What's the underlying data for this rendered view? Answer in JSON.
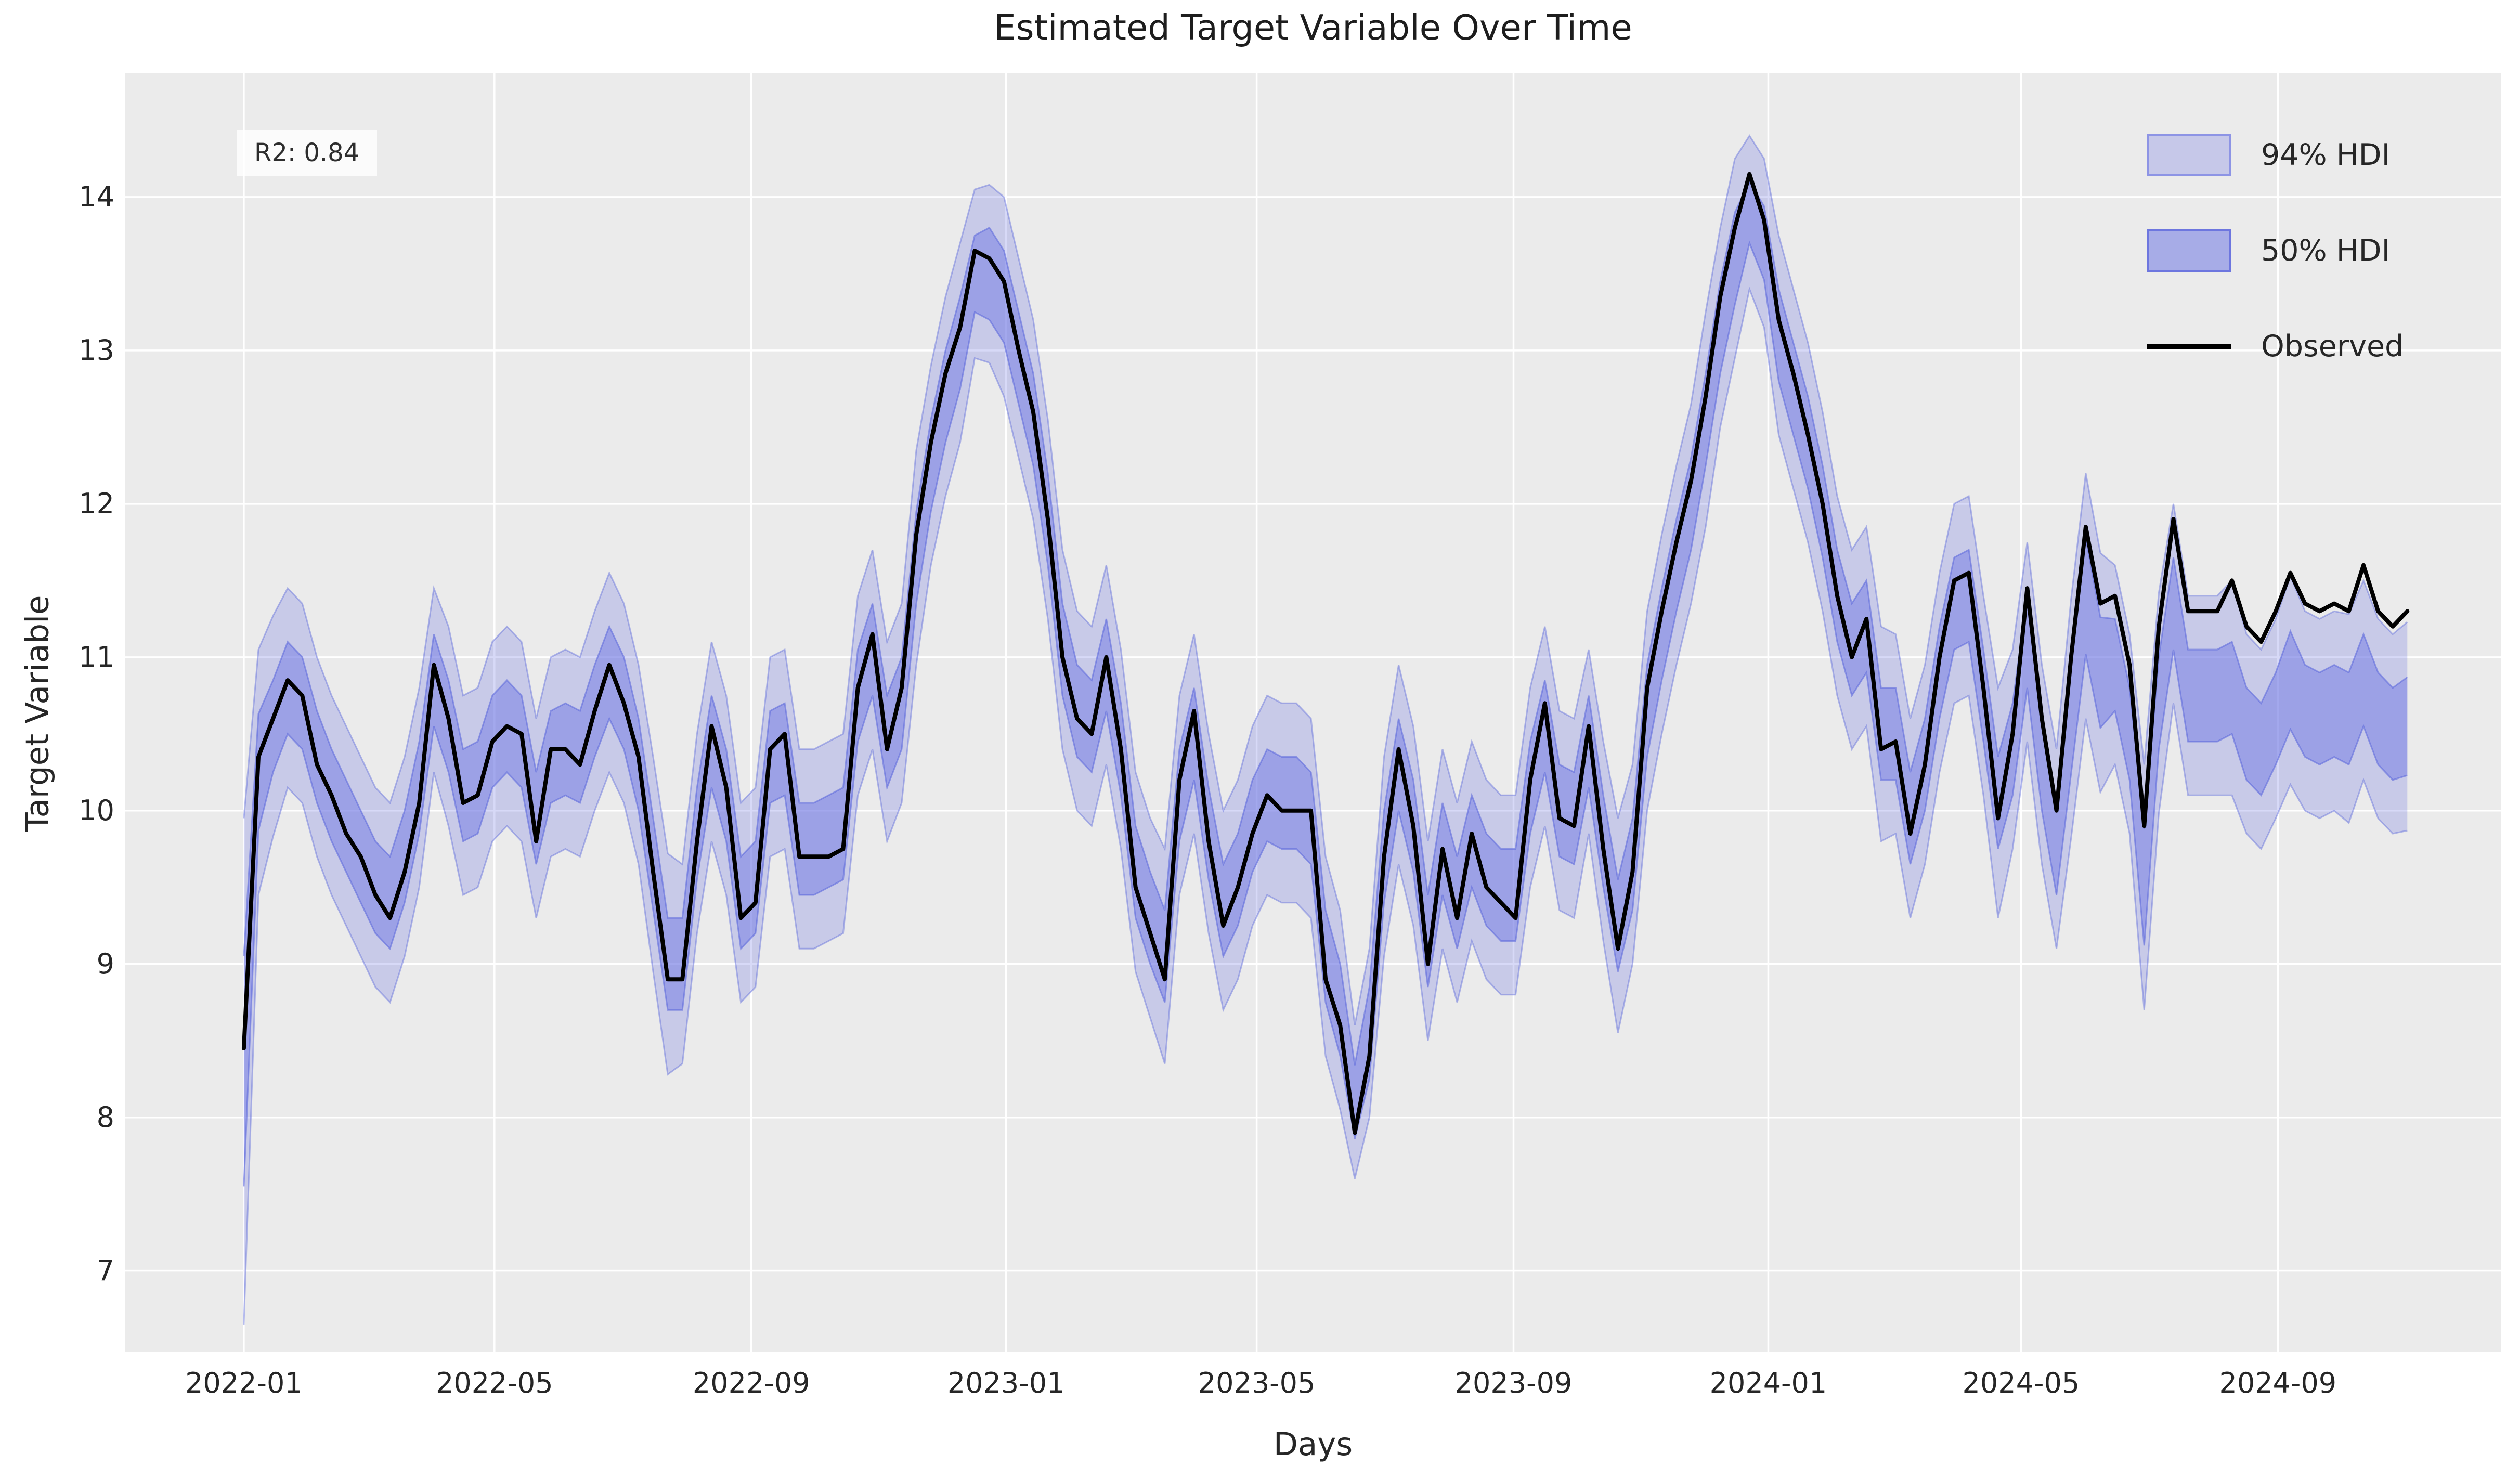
{
  "title": "Estimated Target Variable Over Time",
  "annotation": {
    "r2_label": "R2: 0.84"
  },
  "axes": {
    "xlabel": "Days",
    "ylabel": "Target Variable"
  },
  "legend": {
    "items": [
      {
        "label": "94% HDI",
        "swatch": "light-band-patch"
      },
      {
        "label": "50% HDI",
        "swatch": "dark-band-patch"
      },
      {
        "label": "Observed",
        "swatch": "black-line"
      }
    ]
  },
  "colors": {
    "hdi_fill": "#6F78E4",
    "hdi94_fill_alpha": 0.28,
    "hdi50_fill_alpha": 0.5,
    "band_edge": "#606CDC",
    "observed_line": "#000000",
    "plot_background": "#EBEBEB",
    "figure_background": "#FFFFFF",
    "gridline": "#FFFFFF",
    "text": "#262626"
  },
  "chart_data": {
    "type": "line",
    "title": "Estimated Target Variable Over Time",
    "xlabel": "Days",
    "ylabel": "Target Variable",
    "legend_entries": [
      "94% HDI",
      "50% HDI",
      "Observed"
    ],
    "legend_position": "upper right",
    "grid": true,
    "x_unit": "days since 2022-01-01 (weekly samples)",
    "x_start_day": 0,
    "x_step_days": 7,
    "xlim_days": [
      -57,
      1081
    ],
    "ylim": [
      6.47,
      14.81
    ],
    "y_ticks": [
      7,
      8,
      9,
      10,
      11,
      12,
      13,
      14
    ],
    "x_ticks": [
      {
        "label": "2022-01",
        "day": 0
      },
      {
        "label": "2022-05",
        "day": 120
      },
      {
        "label": "2022-09",
        "day": 243
      },
      {
        "label": "2023-01",
        "day": 365
      },
      {
        "label": "2023-05",
        "day": 485
      },
      {
        "label": "2023-09",
        "day": 608
      },
      {
        "label": "2024-01",
        "day": 730
      },
      {
        "label": "2024-05",
        "day": 851
      },
      {
        "label": "2024-09",
        "day": 974
      }
    ],
    "series": {
      "observed": [
        8.45,
        10.35,
        10.6,
        10.85,
        10.75,
        10.3,
        10.1,
        9.85,
        9.7,
        9.45,
        9.3,
        9.6,
        10.05,
        10.95,
        10.6,
        10.05,
        10.1,
        10.45,
        10.55,
        10.5,
        9.8,
        10.4,
        10.4,
        10.3,
        10.65,
        10.95,
        10.7,
        10.35,
        9.6,
        8.9,
        8.9,
        9.8,
        10.55,
        10.15,
        9.3,
        9.4,
        10.4,
        10.5,
        9.7,
        9.7,
        9.7,
        9.75,
        10.8,
        11.15,
        10.4,
        10.8,
        11.8,
        12.4,
        12.85,
        13.15,
        13.65,
        13.6,
        13.45,
        13.0,
        12.6,
        11.9,
        11.0,
        10.6,
        10.5,
        11.0,
        10.4,
        9.5,
        9.2,
        8.9,
        10.2,
        10.65,
        9.8,
        9.25,
        9.5,
        9.85,
        10.1,
        10.0,
        10.0,
        10.0,
        8.9,
        8.6,
        7.9,
        8.4,
        9.7,
        10.4,
        9.9,
        9.0,
        9.75,
        9.3,
        9.85,
        9.5,
        9.4,
        9.3,
        10.2,
        10.7,
        9.95,
        9.9,
        10.55,
        9.75,
        9.1,
        9.6,
        10.8,
        11.3,
        11.75,
        12.15,
        12.7,
        13.35,
        13.8,
        14.15,
        13.85,
        13.2,
        12.85,
        12.45,
        12.0,
        11.4,
        11.0,
        11.25,
        10.4,
        10.45,
        9.85,
        10.3,
        11.0,
        11.5,
        11.55,
        10.8,
        9.95,
        10.5,
        11.45,
        10.6,
        10.0,
        11.0,
        11.85,
        11.35,
        11.4,
        10.95,
        9.9,
        11.2,
        11.9,
        11.3,
        11.3,
        11.3,
        11.5,
        11.2,
        11.1,
        11.3,
        11.55,
        11.35,
        11.3,
        11.35,
        11.3,
        11.6,
        11.3,
        11.2,
        11.3
      ],
      "hdi_mean": [
        8.3,
        10.25,
        10.55,
        10.8,
        10.7,
        10.35,
        10.1,
        9.9,
        9.7,
        9.5,
        9.4,
        9.7,
        10.15,
        10.85,
        10.55,
        10.1,
        10.15,
        10.45,
        10.55,
        10.45,
        9.95,
        10.35,
        10.4,
        10.35,
        10.65,
        10.9,
        10.7,
        10.3,
        9.65,
        9.0,
        9.0,
        9.85,
        10.45,
        10.1,
        9.4,
        9.5,
        10.35,
        10.4,
        9.75,
        9.75,
        9.8,
        9.85,
        10.75,
        11.05,
        10.45,
        10.7,
        11.65,
        12.25,
        12.7,
        13.05,
        13.5,
        13.5,
        13.35,
        12.95,
        12.55,
        11.9,
        11.05,
        10.65,
        10.55,
        10.95,
        10.4,
        9.6,
        9.3,
        9.05,
        10.1,
        10.5,
        9.85,
        9.35,
        9.55,
        9.9,
        10.1,
        10.05,
        10.05,
        9.95,
        9.05,
        8.7,
        8.1,
        8.55,
        9.7,
        10.3,
        9.9,
        9.15,
        9.75,
        9.4,
        9.8,
        9.55,
        9.45,
        9.45,
        10.15,
        10.55,
        10.0,
        9.95,
        10.45,
        9.8,
        9.25,
        9.65,
        10.65,
        11.15,
        11.6,
        12.0,
        12.55,
        13.15,
        13.6,
        13.9,
        13.7,
        13.1,
        12.75,
        12.4,
        11.95,
        11.4,
        11.05,
        11.2,
        10.5,
        10.5,
        9.95,
        10.3,
        10.9,
        11.35,
        11.4,
        10.75,
        10.05,
        10.4,
        11.1,
        10.3,
        9.75,
        10.6,
        11.4,
        10.9,
        10.95,
        10.5,
        9.5,
        10.7,
        11.35,
        10.75,
        10.75,
        10.75,
        10.8,
        10.5,
        10.4,
        10.6,
        10.85,
        10.65,
        10.6,
        10.65,
        10.6,
        10.85,
        10.6,
        10.5,
        10.55
      ],
      "hdi94_half_width": {
        "default": 0.65,
        "overrides": {
          "0": 1.65,
          "1": 0.8,
          "2": 0.72,
          "13": 0.6,
          "28": 0.7,
          "29": 0.72,
          "46": 0.7,
          "50": 0.55,
          "51": 0.58,
          "63": 0.7,
          "76": 0.5,
          "77": 0.55,
          "92": 0.6,
          "94": 0.7,
          "100": 0.7,
          "103": 0.5,
          "104": 0.55,
          "112": 0.7,
          "120": 0.75,
          "125": 0.78,
          "126": 0.8,
          "127": 0.78,
          "130": 0.8,
          "131": 0.72,
          "136": 0.7,
          "140": 0.68,
          "144": 0.68,
          "148": 0.68
        }
      },
      "hdi50_half_width": {
        "default": 0.3,
        "overrides": {
          "0": 0.75,
          "1": 0.38,
          "50": 0.25,
          "76": 0.24,
          "103": 0.2,
          "104": 0.24,
          "125": 0.36,
          "126": 0.38,
          "127": 0.36,
          "130": 0.38,
          "140": 0.32,
          "148": 0.32
        }
      }
    }
  }
}
